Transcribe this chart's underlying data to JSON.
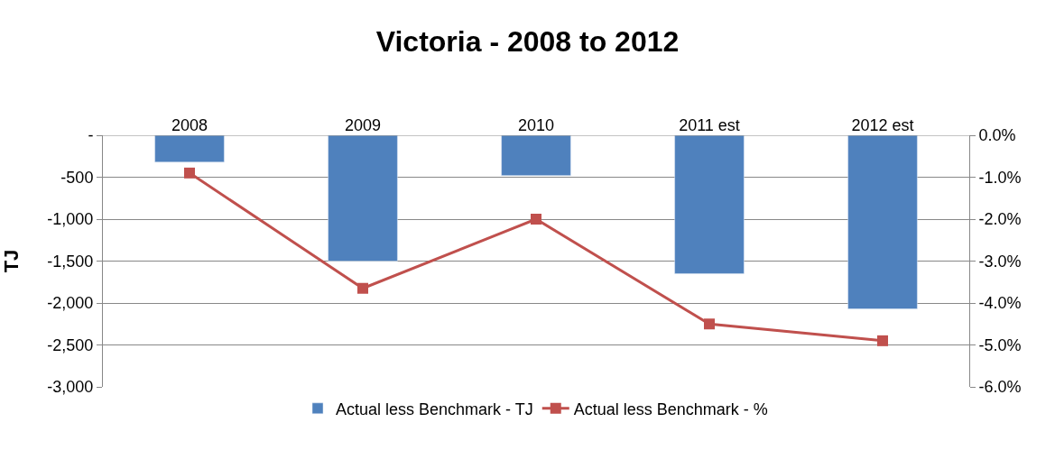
{
  "chart_data": {
    "type": "bar",
    "title": "Victoria - 2008 to 2012",
    "ylabel": "TJ",
    "categories": [
      "2008",
      "2009",
      "2010",
      "2011 est",
      "2012 est"
    ],
    "series": [
      {
        "name": "Actual less Benchmark - TJ",
        "color": "#4f81bd",
        "values": [
          -320,
          -1500,
          -480,
          -1650,
          -2070
        ]
      },
      {
        "name": "Actual less Benchmark - %",
        "type": "line",
        "axis": "y2",
        "color": "#c0504d",
        "marker": "square",
        "values": [
          -0.9,
          -3.65,
          -2.0,
          -4.5,
          -4.9
        ]
      }
    ],
    "ylim": [
      -3000,
      0
    ],
    "yticks": [
      {
        "value": -3000,
        "label": "-3,000"
      },
      {
        "value": -2500,
        "label": "-2,500"
      },
      {
        "value": -2000,
        "label": "-2,000"
      },
      {
        "value": -1500,
        "label": "-1,500"
      },
      {
        "value": -1000,
        "label": "-1,000"
      },
      -500,
      {
        "value": 0,
        "label": "-"
      }
    ],
    "y2lim": [
      -6,
      0
    ],
    "y2ticks": [
      {
        "value": -6,
        "label": "-6.0%"
      },
      {
        "value": -5,
        "label": "-5.0%"
      },
      {
        "value": -4,
        "label": "-4.0%"
      },
      {
        "value": -3,
        "label": "-3.0%"
      },
      {
        "value": -2,
        "label": "-2.0%"
      },
      {
        "value": -1,
        "label": "-1.0%"
      },
      {
        "value": 0,
        "label": "0.0%"
      }
    ],
    "grid": "y",
    "legend": "bottom"
  }
}
